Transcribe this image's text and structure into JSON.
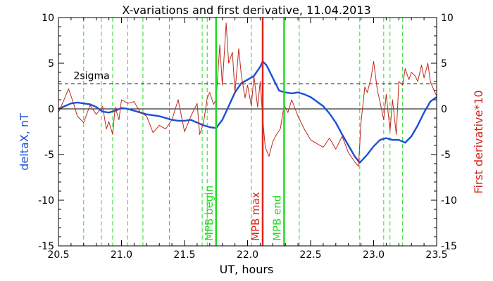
{
  "chart_data": {
    "type": "line",
    "title": "X-variations and first derivative, 11.04.2013",
    "xlabel": "UT, hours",
    "ylabel_left": "deltaX, nT",
    "ylabel_right": "First derivative*10",
    "xlim": [
      20.5,
      23.5
    ],
    "ylim": [
      -15,
      10
    ],
    "x_ticks": [
      20.5,
      21.0,
      21.5,
      22.0,
      22.5,
      23.0,
      23.5
    ],
    "x_tick_labels": [
      "20.5",
      "21.0",
      "21.5",
      "22.0",
      "22.5",
      "23.0",
      "23.5"
    ],
    "y_ticks": [
      -15,
      -10,
      -5,
      0,
      5,
      10
    ],
    "y_tick_labels_left": [
      "-15",
      "-10",
      "-5",
      "0",
      "5",
      "10"
    ],
    "y_tick_labels_right": [
      "-15",
      "-10",
      "-5",
      "0",
      "5",
      "10"
    ],
    "colors": {
      "deltaX": "#1a4fd6",
      "derivative": "#c0281c",
      "green_line": "#22dd22",
      "red_line": "#e0241c",
      "axis": "#000000",
      "left_label": "#1a4fd6",
      "right_label": "#d0281c"
    },
    "threshold": {
      "label": "2sigma",
      "value": 2.75
    },
    "zero_line": 0,
    "dashed_vlines": [
      20.7,
      20.84,
      20.93,
      21.05,
      21.17,
      21.38,
      21.64,
      21.68,
      22.03,
      22.41,
      22.89,
      23.08,
      23.13,
      23.23
    ],
    "markers": [
      {
        "label": "MPB begin",
        "x": 21.75,
        "color": "#22dd22"
      },
      {
        "label": "MPB max",
        "x": 22.12,
        "color": "#e0241c"
      },
      {
        "label": "MPB end",
        "x": 22.29,
        "color": "#22dd22"
      }
    ],
    "series": [
      {
        "key": "deltaX",
        "x": [
          20.5,
          20.55,
          20.6,
          20.65,
          20.7,
          20.75,
          20.8,
          20.85,
          20.9,
          20.95,
          21.0,
          21.05,
          21.1,
          21.15,
          21.2,
          21.25,
          21.3,
          21.35,
          21.4,
          21.45,
          21.5,
          21.55,
          21.6,
          21.65,
          21.7,
          21.75,
          21.8,
          21.85,
          21.9,
          21.95,
          22.0,
          22.05,
          22.1,
          22.12,
          22.15,
          22.2,
          22.25,
          22.3,
          22.35,
          22.4,
          22.45,
          22.5,
          22.55,
          22.6,
          22.65,
          22.7,
          22.75,
          22.8,
          22.85,
          22.89,
          22.95,
          23.0,
          23.05,
          23.1,
          23.15,
          23.2,
          23.25,
          23.3,
          23.35,
          23.4,
          23.45,
          23.5
        ],
        "y": [
          0.0,
          0.3,
          0.6,
          0.7,
          0.6,
          0.5,
          0.2,
          -0.3,
          -0.4,
          -0.2,
          0.1,
          0.0,
          -0.2,
          -0.4,
          -0.6,
          -0.7,
          -0.8,
          -1.0,
          -1.2,
          -1.3,
          -1.3,
          -1.2,
          -1.5,
          -1.8,
          -2.0,
          -2.1,
          -1.2,
          0.3,
          1.8,
          2.8,
          3.2,
          3.6,
          4.6,
          5.2,
          4.8,
          3.4,
          2.0,
          1.8,
          1.7,
          1.8,
          1.6,
          1.3,
          0.8,
          0.3,
          -0.5,
          -1.5,
          -2.8,
          -4.0,
          -5.2,
          -5.9,
          -5.0,
          -4.1,
          -3.4,
          -3.2,
          -3.4,
          -3.4,
          -3.7,
          -3.0,
          -1.8,
          -0.4,
          0.8,
          1.3
        ]
      },
      {
        "key": "derivative",
        "x": [
          20.5,
          20.55,
          20.58,
          20.62,
          20.65,
          20.7,
          20.75,
          20.8,
          20.85,
          20.88,
          20.9,
          20.93,
          20.95,
          20.98,
          21.0,
          21.05,
          21.1,
          21.15,
          21.2,
          21.25,
          21.3,
          21.35,
          21.4,
          21.45,
          21.5,
          21.55,
          21.6,
          21.62,
          21.65,
          21.68,
          21.7,
          21.73,
          21.75,
          21.78,
          21.8,
          21.83,
          21.85,
          21.88,
          21.9,
          21.93,
          21.95,
          21.98,
          22.0,
          22.03,
          22.05,
          22.08,
          22.1,
          22.12,
          22.14,
          22.17,
          22.2,
          22.23,
          22.26,
          22.29,
          22.32,
          22.35,
          22.4,
          22.45,
          22.5,
          22.55,
          22.6,
          22.65,
          22.7,
          22.75,
          22.8,
          22.85,
          22.88,
          22.9,
          22.93,
          22.95,
          22.98,
          23.0,
          23.03,
          23.05,
          23.08,
          23.1,
          23.13,
          23.15,
          23.18,
          23.2,
          23.23,
          23.25,
          23.28,
          23.3,
          23.33,
          23.35,
          23.38,
          23.4,
          23.43,
          23.45,
          23.48,
          23.5
        ],
        "y": [
          -0.4,
          1.2,
          2.2,
          0.6,
          -0.8,
          -1.5,
          0.4,
          -0.6,
          0.3,
          -2.2,
          -1.4,
          -2.8,
          0.2,
          -1.2,
          1.0,
          0.6,
          0.8,
          -0.4,
          -0.8,
          -2.6,
          -1.8,
          -2.2,
          -1.2,
          1.0,
          -2.5,
          -0.8,
          0.6,
          -2.8,
          -1.6,
          1.2,
          1.8,
          0.5,
          1.0,
          7.0,
          2.6,
          9.4,
          5.0,
          6.2,
          1.8,
          6.6,
          3.8,
          1.2,
          2.6,
          0.3,
          3.6,
          0.2,
          3.0,
          -1.0,
          -4.2,
          -5.2,
          -3.6,
          -2.8,
          -2.2,
          0.4,
          -0.4,
          1.0,
          -0.8,
          -2.2,
          -3.4,
          -3.8,
          -4.2,
          -3.2,
          -4.4,
          -3.0,
          -4.8,
          -5.8,
          -6.3,
          -1.5,
          2.4,
          1.8,
          3.4,
          5.2,
          2.0,
          0.8,
          -1.2,
          1.6,
          -2.4,
          1.0,
          -2.8,
          3.0,
          2.6,
          4.4,
          3.2,
          4.0,
          3.6,
          3.0,
          4.8,
          3.4,
          5.0,
          3.0,
          2.0,
          1.4
        ]
      }
    ]
  }
}
